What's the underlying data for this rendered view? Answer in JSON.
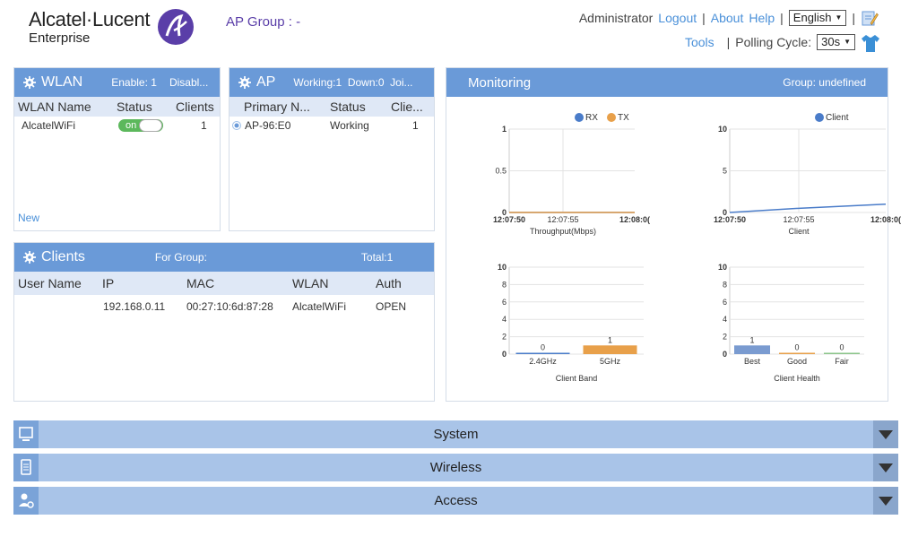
{
  "header": {
    "brand_name": "Alcatel·Lucent",
    "brand_sub": "Enterprise",
    "ap_group_label": "AP Group : -",
    "user": "Administrator",
    "logout": "Logout",
    "sep1": "|",
    "about": "About",
    "help": "Help",
    "sep2": "|",
    "language": "English",
    "sep3": "|",
    "tools": "Tools",
    "sep4": "|",
    "polling_label": "Polling Cycle:",
    "polling_value": "30s"
  },
  "wlan": {
    "title": "WLAN",
    "enable": "Enable: 1",
    "disable": "Disabl...",
    "columns": [
      "WLAN Name",
      "Status",
      "Clients"
    ],
    "rows": [
      {
        "name": "AlcatelWiFi",
        "status": "on",
        "clients": "1"
      }
    ],
    "new_link": "New"
  },
  "ap": {
    "title": "AP",
    "summary": "Working:1  Down:0  Joi...",
    "columns": [
      "Primary N...",
      "Status",
      "Clie..."
    ],
    "rows": [
      {
        "name": "AP-96:E0",
        "status": "Working",
        "clients": "1"
      }
    ]
  },
  "clients": {
    "title": "Clients",
    "for_group": "For Group:",
    "total": "Total:1",
    "columns": [
      "User Name",
      "IP",
      "MAC",
      "WLAN",
      "Auth"
    ],
    "rows": [
      {
        "user": "",
        "ip": "192.168.0.11",
        "mac": "00:27:10:6d:87:28",
        "wlan": "AlcatelWiFi",
        "auth": "OPEN"
      }
    ]
  },
  "monitoring": {
    "title": "Monitoring",
    "group": "Group: undefined"
  },
  "colors": {
    "header_blue": "#6a9ad8",
    "rx": "#4a7cc9",
    "tx": "#e8a04a",
    "client_line": "#4a7cc9",
    "band_bar_24": "#4a7cc9",
    "band_bar_5": "#e8a04a",
    "health_best": "#7a9bd0",
    "health_good": "#e8a04a",
    "health_fair": "#8bc48a"
  },
  "chart_data": [
    {
      "type": "line",
      "xlabel": "Throughput(Mbps)",
      "x": [
        "12:07:50",
        "12:07:55",
        "12:08:0("
      ],
      "ylim": [
        0,
        1
      ],
      "yticks": [
        "1",
        "0.5",
        "0"
      ],
      "series": [
        {
          "name": "RX",
          "values": [
            0,
            0,
            0
          ]
        },
        {
          "name": "TX",
          "values": [
            0,
            0,
            0
          ]
        }
      ],
      "legend": "top-right"
    },
    {
      "type": "line",
      "xlabel": "Client",
      "x": [
        "12:07:50",
        "12:07:55",
        "12:08:0("
      ],
      "ylim": [
        0,
        10
      ],
      "yticks": [
        "10",
        "5",
        "0"
      ],
      "series": [
        {
          "name": "Client",
          "values": [
            0,
            0.5,
            1
          ]
        }
      ],
      "legend": "top-right"
    },
    {
      "type": "bar",
      "xlabel": "Client Band",
      "categories": [
        "2.4GHz",
        "5GHz"
      ],
      "values": [
        0,
        1
      ],
      "value_labels": [
        "0",
        "1"
      ],
      "ylim": [
        0,
        10
      ],
      "yticks": [
        "10",
        "8",
        "6",
        "4",
        "2",
        "0"
      ]
    },
    {
      "type": "bar",
      "xlabel": "Client Health",
      "categories": [
        "Best",
        "Good",
        "Fair"
      ],
      "values": [
        1,
        0,
        0
      ],
      "value_labels": [
        "1",
        "0",
        "0"
      ],
      "ylim": [
        0,
        10
      ],
      "yticks": [
        "10",
        "8",
        "6",
        "4",
        "2",
        "0"
      ]
    }
  ],
  "bottom_bars": [
    {
      "label": "System",
      "icon": "monitor-icon"
    },
    {
      "label": "Wireless",
      "icon": "wireless-device-icon"
    },
    {
      "label": "Access",
      "icon": "user-settings-icon"
    }
  ]
}
